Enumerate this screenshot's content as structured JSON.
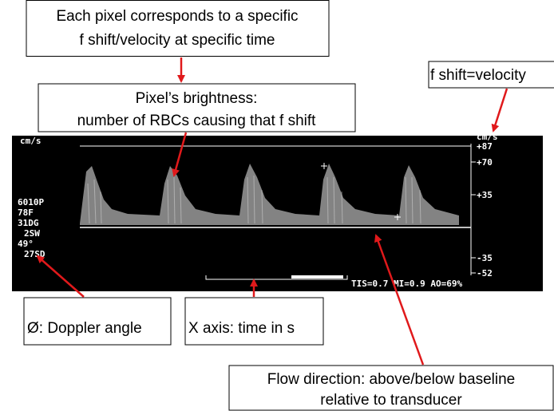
{
  "callouts": {
    "pixel_mapping": {
      "line1": "Each pixel corresponds to a specific",
      "line2": "f shift/velocity at specific time"
    },
    "brightness": {
      "line1": "Pixel’s brightness:",
      "line2": "number of RBCs causing that f shift"
    },
    "velocity": {
      "text": "f shift=velocity"
    },
    "angle": {
      "text": "Ø: Doppler angle"
    },
    "x_axis": {
      "text": "X axis: time in s"
    },
    "flow": {
      "line1": "Flow direction: above/below baseline",
      "line2": "relative to transducer"
    }
  },
  "screen": {
    "unit_left": "cm/s",
    "unit_right": "cm/s",
    "scale_labels": [
      "+87",
      "+70",
      "+35",
      "-35",
      "-52"
    ],
    "settings": [
      "6010P",
      "78F",
      "31DG",
      "2SW",
      "49°",
      "27SD"
    ],
    "status": "TIS=0.7 MI=0.9 AO=69%"
  }
}
